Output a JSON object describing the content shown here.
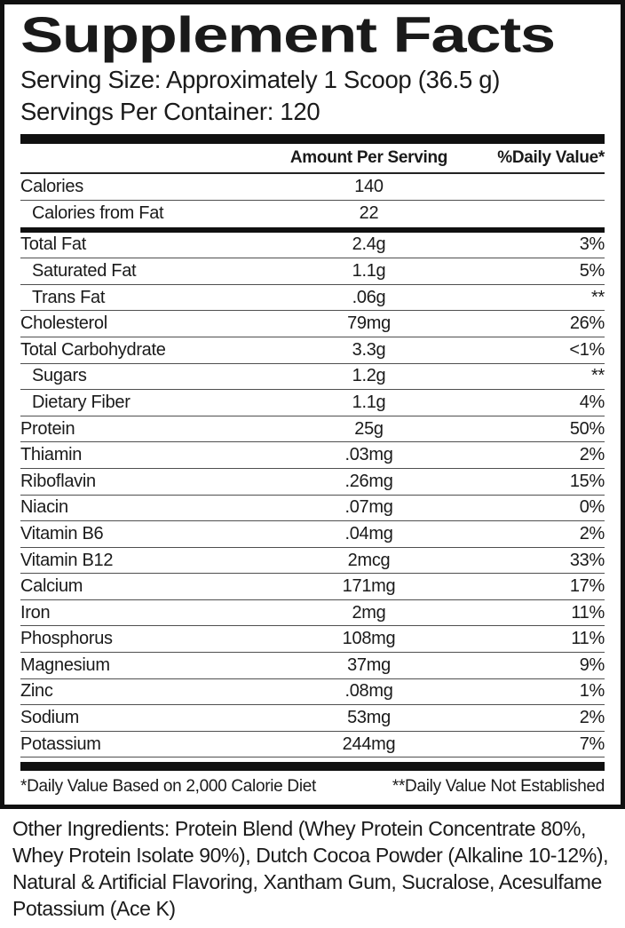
{
  "label": {
    "title": "Supplement Facts",
    "serving_size": "Serving Size: Approximately 1 Scoop (36.5 g)",
    "servings_per_container": "Servings Per Container: 120",
    "columns": {
      "amount": "Amount Per Serving",
      "daily_value": "%Daily Value*"
    },
    "calories_rows": [
      {
        "name": "Calories",
        "amount": "140",
        "dv": "",
        "sub": false
      },
      {
        "name": "Calories from Fat",
        "amount": "22",
        "dv": "",
        "sub": true
      }
    ],
    "nutrient_rows": [
      {
        "name": "Total Fat",
        "amount": "2.4g",
        "dv": "3%",
        "sub": false
      },
      {
        "name": "Saturated Fat",
        "amount": "1.1g",
        "dv": "5%",
        "sub": true
      },
      {
        "name": "Trans Fat",
        "amount": ".06g",
        "dv": "**",
        "sub": true
      },
      {
        "name": "Cholesterol",
        "amount": "79mg",
        "dv": "26%",
        "sub": false
      },
      {
        "name": "Total Carbohydrate",
        "amount": "3.3g",
        "dv": "<1%",
        "sub": false
      },
      {
        "name": "Sugars",
        "amount": "1.2g",
        "dv": "**",
        "sub": true
      },
      {
        "name": "Dietary Fiber",
        "amount": "1.1g",
        "dv": "4%",
        "sub": true
      },
      {
        "name": "Protein",
        "amount": "25g",
        "dv": "50%",
        "sub": false
      },
      {
        "name": "Thiamin",
        "amount": ".03mg",
        "dv": "2%",
        "sub": false
      },
      {
        "name": "Riboflavin",
        "amount": ".26mg",
        "dv": "15%",
        "sub": false
      },
      {
        "name": "Niacin",
        "amount": ".07mg",
        "dv": "0%",
        "sub": false
      },
      {
        "name": "Vitamin B6",
        "amount": ".04mg",
        "dv": "2%",
        "sub": false
      },
      {
        "name": "Vitamin B12",
        "amount": "2mcg",
        "dv": "33%",
        "sub": false
      },
      {
        "name": "Calcium",
        "amount": "171mg",
        "dv": "17%",
        "sub": false
      },
      {
        "name": "Iron",
        "amount": "2mg",
        "dv": "11%",
        "sub": false
      },
      {
        "name": "Phosphorus",
        "amount": "108mg",
        "dv": "11%",
        "sub": false
      },
      {
        "name": "Magnesium",
        "amount": "37mg",
        "dv": "9%",
        "sub": false
      },
      {
        "name": "Zinc",
        "amount": ".08mg",
        "dv": "1%",
        "sub": false
      },
      {
        "name": "Sodium",
        "amount": "53mg",
        "dv": "2%",
        "sub": false
      },
      {
        "name": "Potassium",
        "amount": "244mg",
        "dv": "7%",
        "sub": false
      }
    ],
    "footnotes": {
      "left": "*Daily Value Based on 2,000 Calorie Diet",
      "right": "**Daily Value Not Established"
    }
  },
  "other_ingredients": "Other Ingredients: Protein Blend (Whey Protein Concentrate 80%, Whey Protein Isolate 90%), Dutch Cocoa Powder (Alkaline 10-12%), Natural & Artificial Flavoring, Xantham Gum, Sucralose, Acesulfame Potassium (Ace K)",
  "colors": {
    "text": "#1a1a1a",
    "rule_thick": "#101010",
    "rule_thin": "#4f4f4f"
  }
}
